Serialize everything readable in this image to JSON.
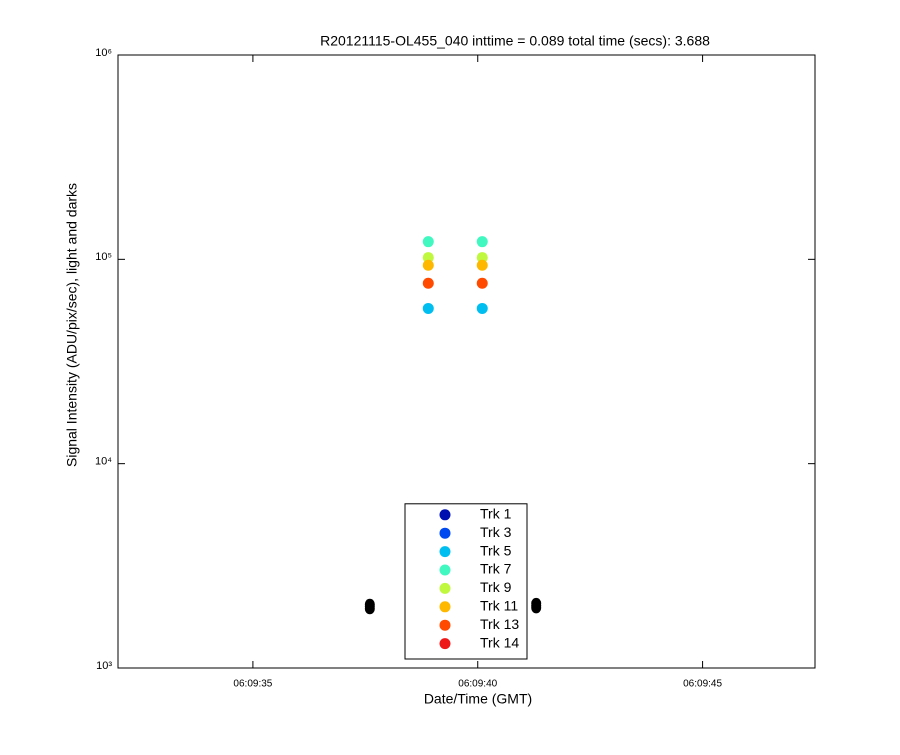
{
  "chart_data": {
    "type": "scatter",
    "title": "R20121115-OL455_040 inttime = 0.089 total time (secs): 3.688",
    "x_label": "Date/Time (GMT)",
    "y_label": "Signal Intensity (ADU/pix/sec), light and darks",
    "log_y": true,
    "xlim": [
      "06:09:32",
      "06:09:47.5"
    ],
    "xticks": [
      "06:09:35",
      "06:09:40",
      "06:09:45"
    ],
    "ylim": [
      1000,
      1000000
    ],
    "yticks": [
      {
        "value": 1000,
        "label": "10³"
      },
      {
        "value": 10000,
        "label": "10⁴"
      },
      {
        "value": 100000,
        "label": "10⁵"
      },
      {
        "value": 1000000,
        "label": "10⁶"
      }
    ],
    "legend": "bottom-center",
    "x": [
      "06:09:38.9",
      "06:09:40.1"
    ],
    "series": [
      {
        "name": "Trk 1",
        "color": "#0010b0",
        "values": [
          null,
          null
        ]
      },
      {
        "name": "Trk 3",
        "color": "#0048f0",
        "values": [
          null,
          null
        ]
      },
      {
        "name": "Trk 5",
        "color": "#00bff0",
        "values": [
          57500,
          57500
        ]
      },
      {
        "name": "Trk 7",
        "color": "#40f8c0",
        "values": [
          122000,
          122000
        ]
      },
      {
        "name": "Trk 9",
        "color": "#c0f840",
        "values": [
          102000,
          102000
        ]
      },
      {
        "name": "Trk 11",
        "color": "#ffb800",
        "values": [
          93500,
          93500
        ]
      },
      {
        "name": "Trk 13",
        "color": "#ff4a00",
        "values": [
          76400,
          76400
        ]
      },
      {
        "name": "Trk 14",
        "color": "#ee1818",
        "values": [
          null,
          null
        ]
      }
    ],
    "darks": {
      "color": "#000000",
      "x": [
        "06:09:37.6",
        "06:09:37.6",
        "06:09:37.6",
        "06:09:41.3",
        "06:09:41.3",
        "06:09:41.3"
      ],
      "values": [
        1950,
        2000,
        2050,
        1970,
        2020,
        2070
      ]
    }
  }
}
